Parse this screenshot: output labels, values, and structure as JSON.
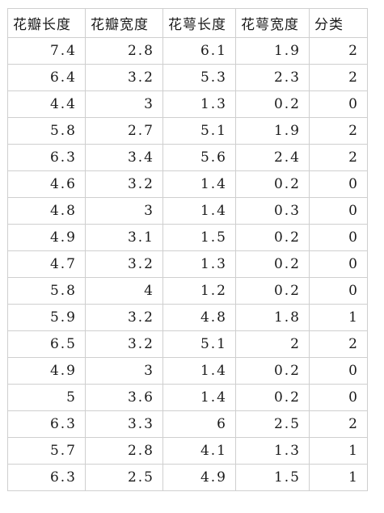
{
  "table": {
    "headers": [
      "花瓣长度",
      "花瓣宽度",
      "花萼长度",
      "花萼宽度",
      "分类"
    ],
    "rows": [
      [
        "7.4",
        "2.8",
        "6.1",
        "1.9",
        "2"
      ],
      [
        "6.4",
        "3.2",
        "5.3",
        "2.3",
        "2"
      ],
      [
        "4.4",
        "3",
        "1.3",
        "0.2",
        "0"
      ],
      [
        "5.8",
        "2.7",
        "5.1",
        "1.9",
        "2"
      ],
      [
        "6.3",
        "3.4",
        "5.6",
        "2.4",
        "2"
      ],
      [
        "4.6",
        "3.2",
        "1.4",
        "0.2",
        "0"
      ],
      [
        "4.8",
        "3",
        "1.4",
        "0.3",
        "0"
      ],
      [
        "4.9",
        "3.1",
        "1.5",
        "0.2",
        "0"
      ],
      [
        "4.7",
        "3.2",
        "1.3",
        "0.2",
        "0"
      ],
      [
        "5.8",
        "4",
        "1.2",
        "0.2",
        "0"
      ],
      [
        "5.9",
        "3.2",
        "4.8",
        "1.8",
        "1"
      ],
      [
        "6.5",
        "3.2",
        "5.1",
        "2",
        "2"
      ],
      [
        "4.9",
        "3",
        "1.4",
        "0.2",
        "0"
      ],
      [
        "5",
        "3.6",
        "1.4",
        "0.2",
        "0"
      ],
      [
        "6.3",
        "3.3",
        "6",
        "2.5",
        "2"
      ],
      [
        "5.7",
        "2.8",
        "4.1",
        "1.3",
        "1"
      ],
      [
        "6.3",
        "2.5",
        "4.9",
        "1.5",
        "1"
      ]
    ]
  }
}
